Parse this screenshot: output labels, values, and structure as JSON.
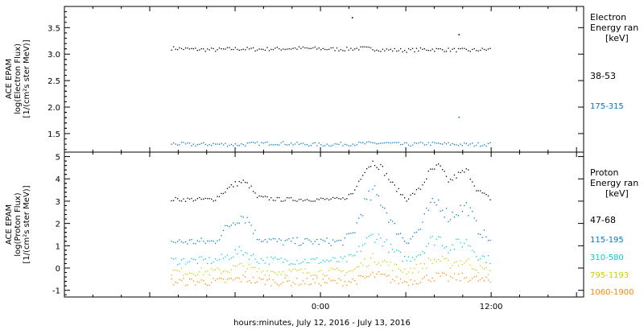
{
  "chart_data": [
    {
      "type": "scatter",
      "panel": "electron",
      "ylabel_lines": [
        "ACE EPAM",
        "log(Electron Flux)",
        "[1/(cm²s ster MeV)]"
      ],
      "legend_title_lines": [
        "Electron",
        "Energy ran",
        "[keV]"
      ],
      "ylim": [
        1.15,
        3.9
      ],
      "yticks": [
        "1.5",
        "2.0",
        "2.5",
        "3.0",
        "3.5"
      ],
      "series": [
        {
          "name": "38-53",
          "color": "#000000",
          "x": [
            -10.5,
            -9,
            -7.5,
            -6,
            -4.5,
            -3,
            -1.5,
            0,
            1.5,
            3,
            4.5,
            6,
            7.5,
            9,
            10.5,
            12
          ],
          "y": [
            3.12,
            3.1,
            3.09,
            3.11,
            3.1,
            3.11,
            3.12,
            3.11,
            3.1,
            3.12,
            3.09,
            3.08,
            3.1,
            3.09,
            3.08,
            3.1
          ]
        },
        {
          "name": "175-315",
          "color": "#0077cc",
          "x": [
            -10.5,
            -9,
            -7.5,
            -6,
            -4.5,
            -3,
            -1.5,
            0,
            1.5,
            3,
            4.5,
            6,
            7.5,
            9,
            10.5,
            12
          ],
          "y": [
            1.32,
            1.3,
            1.31,
            1.3,
            1.32,
            1.33,
            1.31,
            1.3,
            1.31,
            1.32,
            1.33,
            1.3,
            1.32,
            1.31,
            1.3,
            1.31
          ]
        }
      ],
      "outliers": [
        {
          "x": 2.2,
          "y": 3.7,
          "color": "#000000"
        },
        {
          "x": 9.7,
          "y": 3.38,
          "color": "#000000"
        },
        {
          "x": 9.7,
          "y": 1.82,
          "color": "#0077cc"
        }
      ]
    },
    {
      "type": "scatter",
      "panel": "proton",
      "ylabel_lines": [
        "ACE EPAM",
        "log(Proton Flux)",
        "[1/(cm²s ster MeV)]"
      ],
      "legend_title_lines": [
        "Proton",
        "Energy ran",
        "[keV]"
      ],
      "ylim": [
        -1.3,
        5.2
      ],
      "yticks": [
        "-1",
        "0",
        "1",
        "2",
        "3",
        "4",
        "5"
      ],
      "series": [
        {
          "name": "47-68",
          "color": "#000000",
          "x": [
            -10.5,
            -9,
            -7.5,
            -6.5,
            -6,
            -5.5,
            -5,
            -4.5,
            -3,
            -1.5,
            0,
            1.5,
            2.3,
            3,
            3.7,
            4.3,
            5,
            6,
            7,
            7.6,
            8.3,
            9,
            9.6,
            10.3,
            11,
            12
          ],
          "y": [
            3.1,
            3.1,
            3.1,
            3.6,
            3.8,
            3.9,
            3.7,
            3.2,
            3.1,
            3.1,
            3.1,
            3.1,
            3.4,
            4.4,
            4.8,
            4.5,
            3.8,
            3.1,
            3.6,
            4.3,
            4.6,
            3.9,
            4.2,
            4.4,
            3.5,
            3.1
          ]
        },
        {
          "name": "115-195",
          "color": "#0077cc",
          "x": [
            -10.5,
            -9,
            -7.5,
            -6.5,
            -6,
            -5.5,
            -5,
            -4.5,
            -3,
            -1.5,
            0,
            1.5,
            2.3,
            3,
            3.7,
            4.3,
            5,
            6,
            7,
            7.6,
            8.3,
            9,
            9.6,
            10.3,
            11,
            12
          ],
          "y": [
            1.2,
            1.2,
            1.2,
            1.9,
            2.2,
            2.4,
            2.1,
            1.4,
            1.2,
            1.2,
            1.2,
            1.2,
            1.6,
            2.8,
            3.4,
            3.0,
            2.0,
            1.2,
            1.8,
            2.7,
            3.0,
            2.3,
            2.6,
            2.8,
            1.8,
            1.2
          ]
        },
        {
          "name": "310-580",
          "color": "#00cccc",
          "x": [
            -10.5,
            -9,
            -7.5,
            -6.5,
            -6,
            -5.5,
            -5,
            -4.5,
            -3,
            -1.5,
            0,
            1.5,
            2.3,
            3,
            3.7,
            4.3,
            5,
            6,
            7,
            7.6,
            8.3,
            9,
            9.6,
            10.3,
            11,
            12
          ],
          "y": [
            0.35,
            0.35,
            0.35,
            0.55,
            0.7,
            0.8,
            0.6,
            0.4,
            0.35,
            0.35,
            0.35,
            0.35,
            0.5,
            1.1,
            1.5,
            1.3,
            0.8,
            0.4,
            0.7,
            1.2,
            1.4,
            0.9,
            1.1,
            1.2,
            0.6,
            0.35
          ]
        },
        {
          "name": "795-1193",
          "color": "#cccc00",
          "x": [
            -10.5,
            -9,
            -7.5,
            -6.5,
            -6,
            -5.5,
            -5,
            -4.5,
            -3,
            -1.5,
            0,
            1.5,
            2.3,
            3,
            3.7,
            4.3,
            5,
            6,
            7,
            7.6,
            8.3,
            9,
            9.6,
            10.3,
            11,
            12
          ],
          "y": [
            -0.15,
            -0.15,
            -0.15,
            -0.05,
            0.05,
            0.1,
            0.0,
            -0.1,
            -0.15,
            -0.15,
            -0.15,
            -0.15,
            -0.1,
            0.25,
            0.45,
            0.35,
            0.1,
            -0.1,
            0.05,
            0.3,
            0.4,
            0.2,
            0.3,
            0.3,
            0.0,
            -0.15
          ]
        },
        {
          "name": "1060-1900",
          "color": "#ff8800",
          "x": [
            -10.5,
            -9,
            -7.5,
            -6.5,
            -6,
            -5.5,
            -5,
            -4.5,
            -3,
            -1.5,
            0,
            1.5,
            2.3,
            3,
            3.7,
            4.3,
            5,
            6,
            7,
            7.6,
            8.3,
            9,
            9.6,
            10.3,
            11,
            12
          ],
          "y": [
            -0.6,
            -0.6,
            -0.6,
            -0.55,
            -0.5,
            -0.45,
            -0.5,
            -0.55,
            -0.6,
            -0.6,
            -0.6,
            -0.6,
            -0.55,
            -0.45,
            -0.3,
            -0.35,
            -0.5,
            -0.6,
            -0.5,
            -0.4,
            -0.35,
            -0.45,
            -0.4,
            -0.4,
            -0.5,
            -0.6
          ]
        }
      ]
    }
  ],
  "xaxis": {
    "xlim": [
      -18,
      18.5
    ],
    "ticks": [
      {
        "x": 0,
        "label": "0:00"
      },
      {
        "x": 12,
        "label": "12:00"
      }
    ],
    "label": "hours:minutes, July 12, 2016 - July 13, 2016"
  }
}
